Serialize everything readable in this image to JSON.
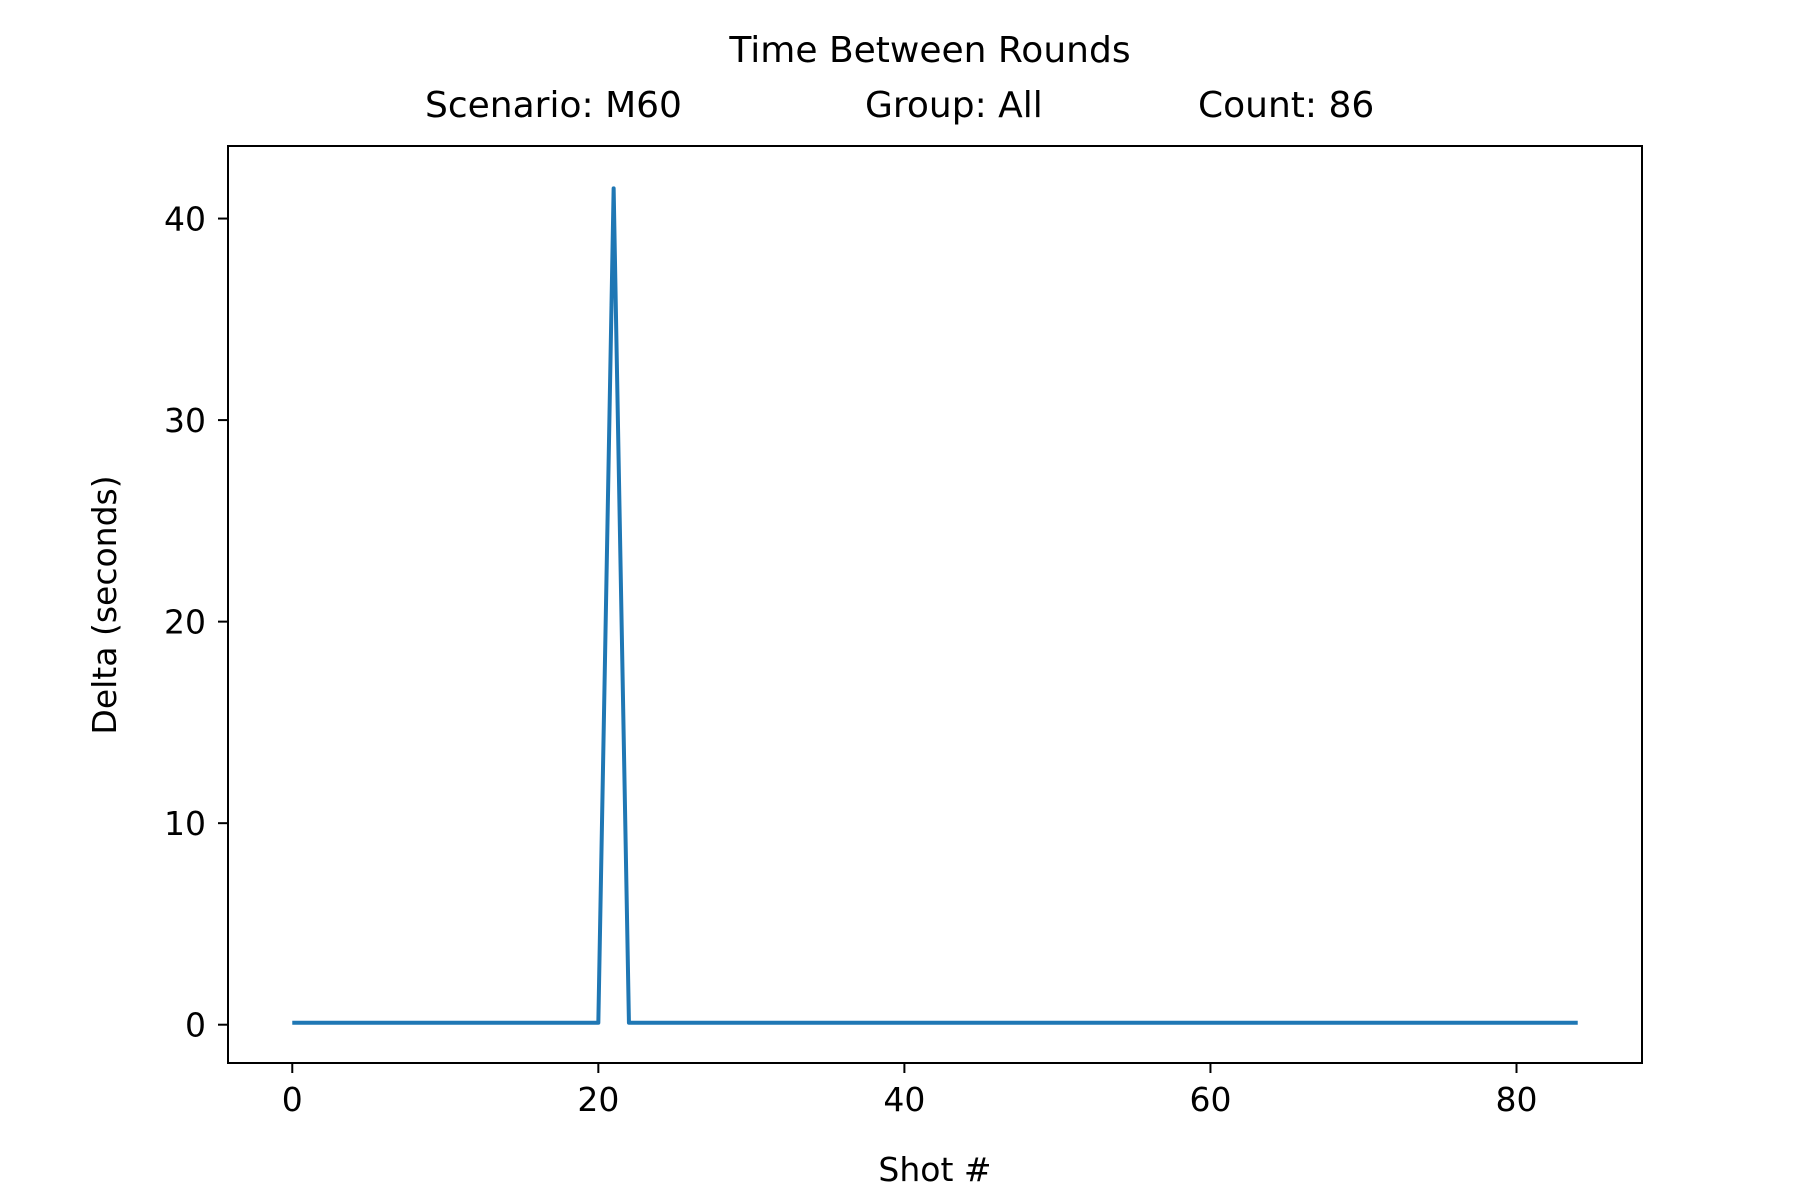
{
  "chart_data": {
    "type": "line",
    "title": "Time Between Rounds",
    "subtitle": {
      "scenario": "Scenario: M60",
      "group": "Group: All",
      "count": "Count: 86"
    },
    "xlabel": "Shot #",
    "ylabel": "Delta (seconds)",
    "xlim": [
      -4.2,
      88.2
    ],
    "ylim": [
      -1.9,
      43.6
    ],
    "xticks": [
      0,
      20,
      40,
      60,
      80
    ],
    "yticks": [
      0,
      10,
      20,
      30,
      40
    ],
    "grid": false,
    "series": [
      {
        "color": "#1f77b4",
        "x": [
          0,
          20,
          21,
          22,
          84
        ],
        "y": [
          0.1,
          0.1,
          41.5,
          0.1,
          0.1
        ]
      }
    ]
  }
}
